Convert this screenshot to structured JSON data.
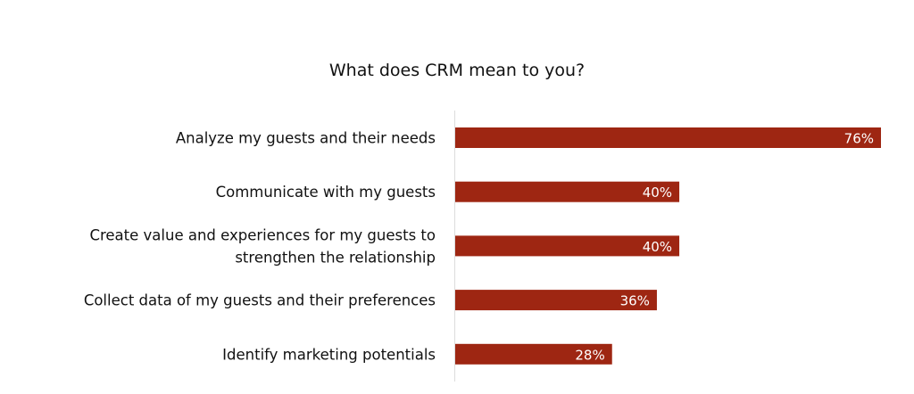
{
  "chart_data": {
    "type": "bar",
    "orientation": "horizontal",
    "title": "What does CRM mean to you?",
    "categories": [
      [
        "Analyze my guests and their needs"
      ],
      [
        "Communicate with my guests"
      ],
      [
        "Create value and experiences for my guests to",
        "strengthen the relationship"
      ],
      [
        "Collect data of my guests and their preferences"
      ],
      [
        "Identify marketing potentials"
      ]
    ],
    "values": [
      76,
      40,
      40,
      36,
      28
    ],
    "data_labels": [
      "76%",
      "40%",
      "40%",
      "36%",
      "28%"
    ],
    "unit": "%",
    "xlim": [
      0,
      76
    ],
    "grid": false,
    "legend": "none",
    "bar_color": "#9e2612",
    "label_color": "#ffffff"
  }
}
